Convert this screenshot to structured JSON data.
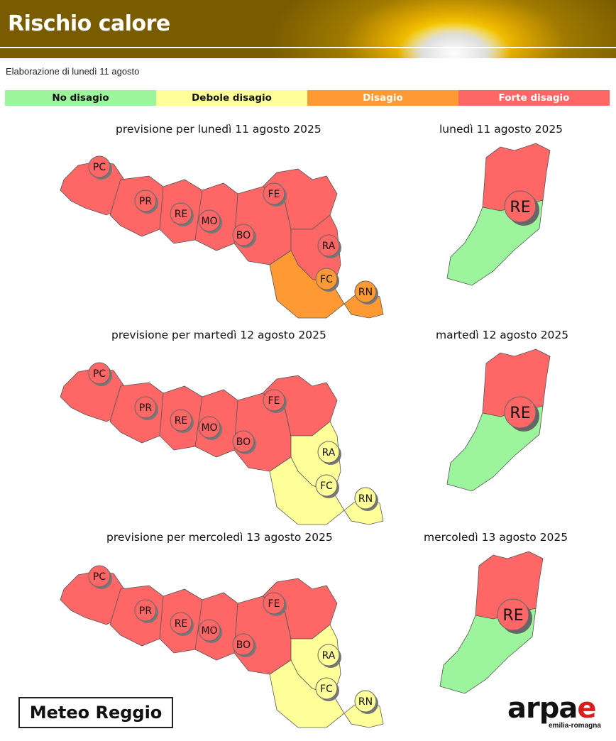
{
  "header": {
    "title": "Rischio calore"
  },
  "subtitle": "Elaborazione di lunedì 11 agosto",
  "legend": [
    {
      "label": "No disagio",
      "color": "#9cf59c",
      "text_color": "#111111"
    },
    {
      "label": "Debole disagio",
      "color": "#ffff99",
      "text_color": "#111111"
    },
    {
      "label": "Disagio",
      "color": "#ff9933",
      "text_color": "#ffffff"
    },
    {
      "label": "Forte disagio",
      "color": "#ff6666",
      "text_color": "#ffffff"
    }
  ],
  "forecasts": [
    {
      "title": "previsione per lunedì 11 agosto 2025",
      "zoom_title": "lunedì 11 agosto 2025",
      "zoom_label": "RE",
      "provinces": {
        "PC": "forte",
        "PR": "forte",
        "RE": "forte",
        "MO": "forte",
        "BO": "forte",
        "FE": "forte",
        "RA": "forte",
        "FC": "disagio",
        "RN": "disagio"
      }
    },
    {
      "title": "previsione per martedì 12 agosto 2025",
      "zoom_title": "martedì 12 agosto 2025",
      "zoom_label": "RE",
      "provinces": {
        "PC": "forte",
        "PR": "forte",
        "RE": "forte",
        "MO": "forte",
        "BO": "forte",
        "FE": "forte",
        "RA": "debole",
        "FC": "debole",
        "RN": "debole"
      }
    },
    {
      "title": "previsione per mercoledì 13 agosto 2025",
      "zoom_title": "mercoledì 13 agosto 2025",
      "zoom_label": "RE",
      "provinces": {
        "PC": "forte",
        "PR": "forte",
        "RE": "forte",
        "MO": "forte",
        "BO": "forte",
        "FE": "forte",
        "RA": "debole",
        "FC": "debole",
        "RN": "debole"
      }
    }
  ],
  "logos": {
    "meteo_reggio": "Meteo Reggio",
    "arpae_prefix": "arpa",
    "arpae_suffix": "e",
    "arpae_sub": "emilia-romagna"
  }
}
